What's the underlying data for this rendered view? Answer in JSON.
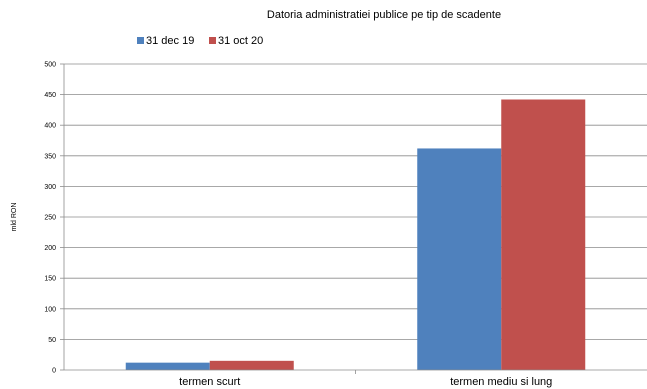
{
  "chart_data": {
    "type": "bar",
    "title": "Datoria administratiei publice  pe tip de scadente",
    "ylabel": "mld RON",
    "xlabel": "",
    "categories": [
      "termen scurt",
      "termen mediu si lung"
    ],
    "series": [
      {
        "name": "31 dec 19",
        "values": [
          12,
          362
        ],
        "color": "#4f81bd"
      },
      {
        "name": "31 oct 20",
        "values": [
          15,
          442
        ],
        "color": "#c0504d"
      }
    ],
    "ylim": [
      0,
      500
    ],
    "yticks": [
      0,
      50,
      100,
      150,
      200,
      250,
      300,
      350,
      400,
      450,
      500
    ],
    "grid": true,
    "legend_position": "top-left"
  }
}
